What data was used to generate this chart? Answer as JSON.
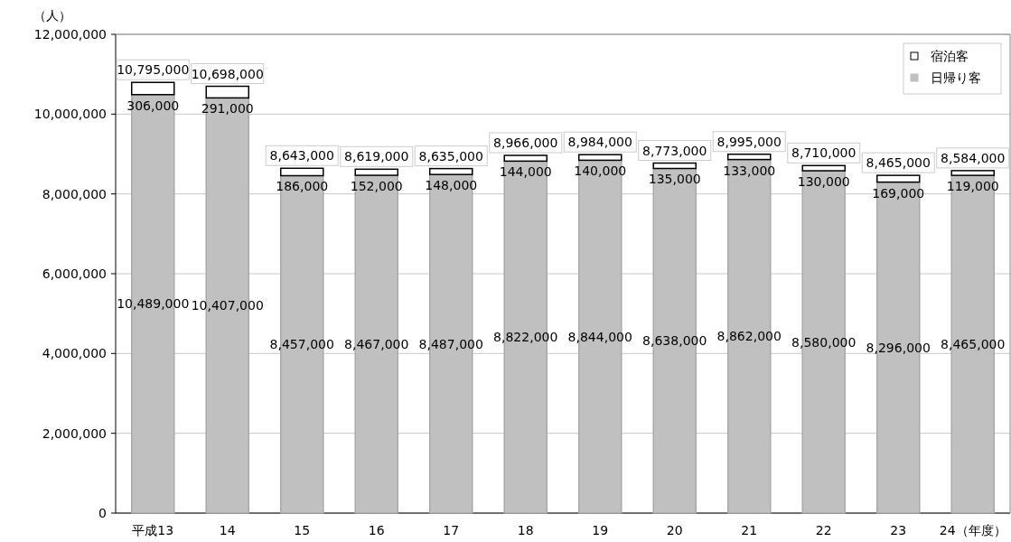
{
  "chart_data": {
    "type": "bar",
    "stacked": true,
    "ylabel": "（人）",
    "categories": [
      "平成13",
      "14",
      "15",
      "16",
      "17",
      "18",
      "19",
      "20",
      "21",
      "22",
      "23",
      "24（年度）"
    ],
    "series": [
      {
        "name": "日帰り客",
        "color": "#c0c0c0",
        "values": [
          10489000,
          10407000,
          8457000,
          8467000,
          8487000,
          8822000,
          8844000,
          8638000,
          8862000,
          8580000,
          8296000,
          8465000
        ],
        "value_labels": [
          "10,489,000",
          "10,407,000",
          "8,457,000",
          "8,467,000",
          "8,487,000",
          "8,822,000",
          "8,844,000",
          "8,638,000",
          "8,862,000",
          "8,580,000",
          "8,296,000",
          "8,465,000"
        ]
      },
      {
        "name": "宿泊客",
        "color": "#ffffff",
        "values": [
          306000,
          291000,
          186000,
          152000,
          148000,
          144000,
          140000,
          135000,
          133000,
          130000,
          169000,
          119000
        ],
        "value_labels": [
          "306,000",
          "291,000",
          "186,000",
          "152,000",
          "148,000",
          "144,000",
          "140,000",
          "135,000",
          "133,000",
          "130,000",
          "169,000",
          "119,000"
        ]
      }
    ],
    "totals": [
      "10,795,000",
      "10,698,000",
      "8,643,000",
      "8,619,000",
      "8,635,000",
      "8,966,000",
      "8,984,000",
      "8,773,000",
      "8,995,000",
      "8,710,000",
      "8,465,000",
      "8,584,000"
    ],
    "ylim": [
      0,
      12000000
    ],
    "yticks": [
      0,
      {
        "value": 2000000,
        "label": "2,000,000"
      },
      {
        "value": 4000000,
        "label": "4,000,000"
      },
      {
        "value": 6000000,
        "label": "6,000,000"
      },
      {
        "value": 8000000,
        "label": "8,000,000"
      },
      {
        "value": 10000000,
        "label": "10,000,000"
      },
      {
        "value": 12000000,
        "label": "12,000,000"
      }
    ],
    "grid": "y",
    "legend": "top right"
  }
}
